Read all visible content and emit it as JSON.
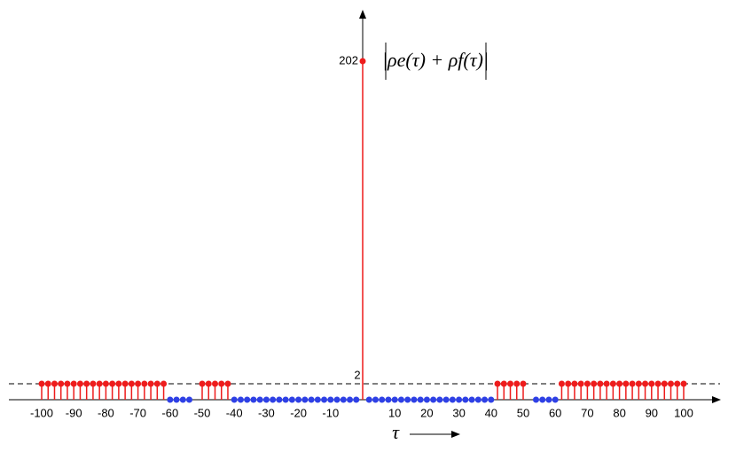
{
  "chart_data": {
    "type": "stem",
    "annotation": "|ρe(τ) + ρf(τ)|",
    "x_label": "τ",
    "x": [
      -100,
      -98,
      -96,
      -94,
      -92,
      -90,
      -88,
      -86,
      -84,
      -82,
      -80,
      -78,
      -76,
      -74,
      -72,
      -70,
      -68,
      -66,
      -64,
      -62,
      -60,
      -58,
      -56,
      -54,
      -50,
      -48,
      -46,
      -44,
      -42,
      -40,
      -38,
      -36,
      -34,
      -32,
      -30,
      -28,
      -26,
      -24,
      -22,
      -20,
      -18,
      -16,
      -14,
      -12,
      -10,
      -8,
      -6,
      -4,
      -2,
      0,
      2,
      4,
      6,
      8,
      10,
      12,
      14,
      16,
      18,
      20,
      22,
      24,
      26,
      28,
      30,
      32,
      34,
      36,
      38,
      40,
      42,
      44,
      46,
      48,
      50,
      54,
      56,
      58,
      60,
      62,
      64,
      66,
      68,
      70,
      72,
      74,
      76,
      78,
      80,
      82,
      84,
      86,
      88,
      90,
      92,
      94,
      96,
      98,
      100
    ],
    "values": [
      2,
      2,
      2,
      2,
      2,
      2,
      2,
      2,
      2,
      2,
      2,
      2,
      2,
      2,
      2,
      2,
      2,
      2,
      2,
      2,
      0,
      0,
      0,
      0,
      2,
      2,
      2,
      2,
      2,
      0,
      0,
      0,
      0,
      0,
      0,
      0,
      0,
      0,
      0,
      0,
      0,
      0,
      0,
      0,
      0,
      0,
      0,
      0,
      0,
      202,
      0,
      0,
      0,
      0,
      0,
      0,
      0,
      0,
      0,
      0,
      0,
      0,
      0,
      0,
      0,
      0,
      0,
      0,
      0,
      0,
      2,
      2,
      2,
      2,
      2,
      0,
      0,
      0,
      0,
      2,
      2,
      2,
      2,
      2,
      2,
      2,
      2,
      2,
      2,
      2,
      2,
      2,
      2,
      2,
      2,
      2,
      2,
      2,
      2
    ],
    "nonzero_color": "#ee1c1c",
    "zero_color": "#2e40e6",
    "xlim": [
      -100,
      100
    ],
    "xticks": [
      -100,
      -90,
      -80,
      -70,
      -60,
      -50,
      -40,
      -30,
      -20,
      -10,
      10,
      20,
      30,
      40,
      50,
      60,
      70,
      80,
      90,
      100
    ],
    "ylim": [
      0,
      202
    ],
    "yticks": [
      2,
      202
    ],
    "threshold_line": true
  }
}
